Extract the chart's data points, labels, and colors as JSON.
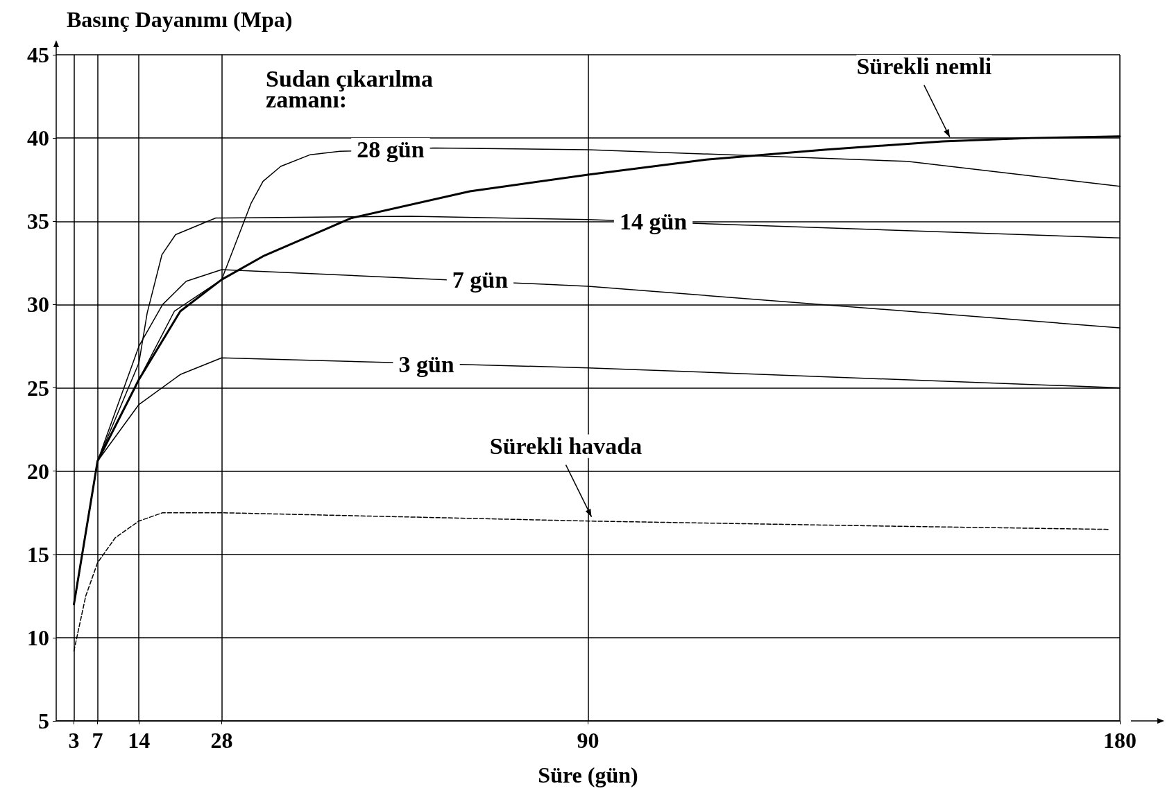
{
  "chart_data": {
    "type": "line",
    "xlabel": "Süre (gün)",
    "ylabel": "Basınç Dayanımı (Mpa)",
    "xlim": [
      0,
      180
    ],
    "xticks": [
      3,
      7,
      14,
      28,
      90,
      180
    ],
    "ylim": [
      5,
      45
    ],
    "yticks": [
      5,
      10,
      15,
      20,
      25,
      30,
      35,
      40,
      45
    ],
    "grid": true,
    "legend": false,
    "marker": "none",
    "series": [
      {
        "name": "Sürekli nemli",
        "color": "#000000",
        "line_style": "solid",
        "x": [
          3,
          7,
          14,
          21,
          28,
          35,
          50,
          70,
          90,
          110,
          130,
          150,
          165,
          180
        ],
        "values": [
          12,
          20.6,
          25.5,
          29.6,
          31.5,
          32.9,
          35.2,
          36.8,
          37.8,
          38.7,
          39.3,
          39.8,
          40,
          40.1
        ]
      },
      {
        "color": "#000000",
        "line_style": "solid",
        "x": [
          3,
          7,
          14,
          20,
          28,
          33,
          35,
          38,
          43,
          48,
          64,
          90,
          144,
          180
        ],
        "values": [
          12,
          20.6,
          25.5,
          29.6,
          31.5,
          36.1,
          37.4,
          38.3,
          39,
          39.2,
          39.4,
          39.3,
          38.6,
          37.1
        ]
      },
      {
        "color": "#000000",
        "line_style": "solid",
        "x": [
          3,
          7,
          14,
          15.4,
          17.9,
          20.2,
          27,
          28,
          60,
          90,
          180
        ],
        "values": [
          12,
          20.6,
          26.5,
          29.5,
          33,
          34.2,
          35.2,
          35.2,
          35.3,
          35.1,
          34
        ]
      },
      {
        "color": "#000000",
        "line_style": "solid",
        "x": [
          3,
          7,
          14,
          18,
          22,
          28,
          90,
          180
        ],
        "values": [
          12,
          20.6,
          27.5,
          30,
          31.4,
          32.1,
          31.1,
          28.6
        ]
      },
      {
        "color": "#000000",
        "line_style": "solid",
        "x": [
          3,
          7,
          14,
          21,
          28,
          90,
          180
        ],
        "values": [
          12,
          20.6,
          24,
          25.8,
          26.8,
          26.2,
          25
        ]
      },
      {
        "name": "Sürekli havada",
        "color": "#000000",
        "line_style": "dashed",
        "x": [
          3,
          5,
          7,
          10,
          14,
          18,
          28,
          90,
          140,
          178
        ],
        "values": [
          9.2,
          12.5,
          14.5,
          16,
          17,
          17.5,
          17.5,
          17,
          16.7,
          16.5
        ]
      }
    ],
    "annotations": [
      "Sudan çıkarılma zamanı:",
      {
        "text": "28 gün",
        "x": 56,
        "y": 39.3
      },
      {
        "text": "14 gün",
        "x": 100,
        "y": 35
      },
      {
        "text": "7 gün",
        "x": 71,
        "y": 31.5
      },
      {
        "text": "3 gün",
        "x": 62,
        "y": 26.4
      }
    ]
  }
}
